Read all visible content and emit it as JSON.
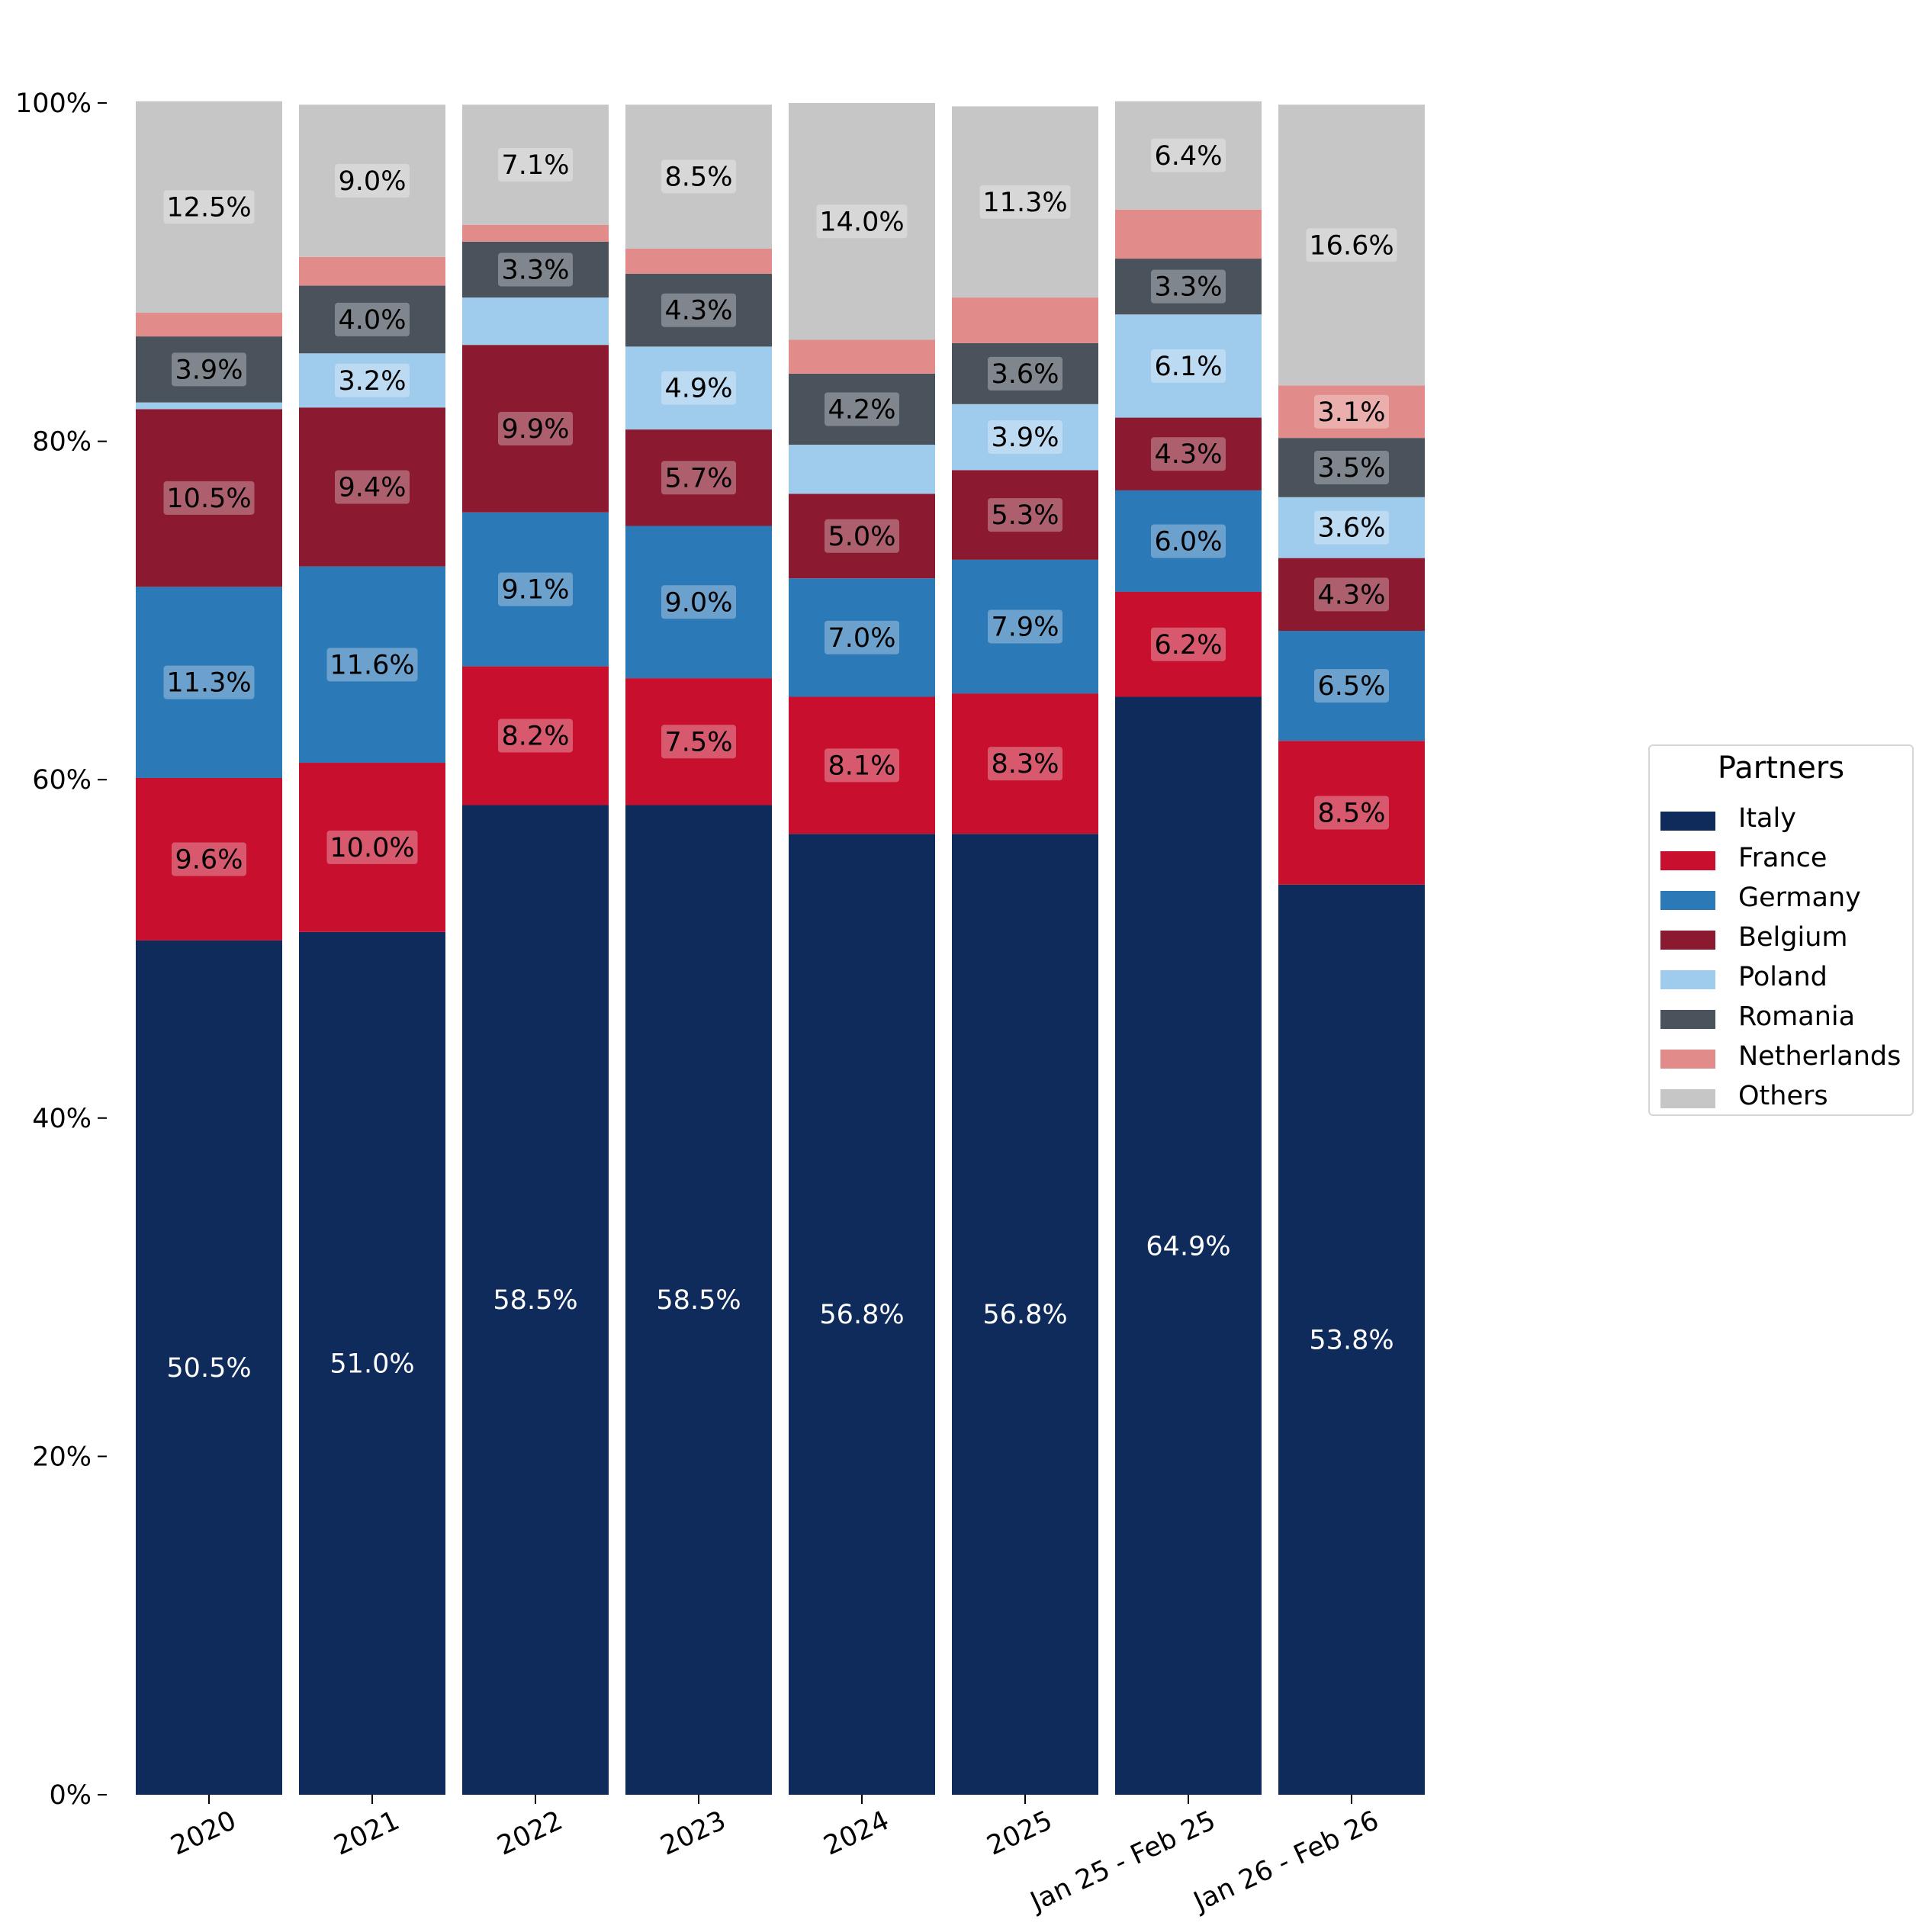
{
  "chart_data": {
    "type": "bar",
    "stacked": true,
    "orientation": "vertical",
    "categories": [
      "2020",
      "2021",
      "2022",
      "2023",
      "2024",
      "2025",
      "Jan 25 - Feb 25",
      "Jan 26 - Feb 26"
    ],
    "ylim": [
      0,
      100
    ],
    "y_ticks": [
      "0%",
      "20%",
      "40%",
      "60%",
      "80%",
      "100%"
    ],
    "grid": false,
    "legend": {
      "title": "Partners",
      "placement": "right"
    },
    "series": [
      {
        "name": "Italy",
        "color": "#0e2b5c",
        "values": [
          50.5,
          51.0,
          58.5,
          58.5,
          56.8,
          56.8,
          64.9,
          53.8
        ]
      },
      {
        "name": "France",
        "color": "#c8102e",
        "values": [
          9.6,
          10.0,
          8.2,
          7.5,
          8.1,
          8.3,
          6.2,
          8.5
        ]
      },
      {
        "name": "Germany",
        "color": "#2b79b6",
        "values": [
          11.3,
          11.6,
          9.1,
          9.0,
          7.0,
          7.9,
          6.0,
          6.5
        ]
      },
      {
        "name": "Belgium",
        "color": "#8b1a30",
        "values": [
          10.5,
          9.4,
          9.9,
          5.7,
          5.0,
          5.3,
          4.3,
          4.3
        ]
      },
      {
        "name": "Poland",
        "color": "#9fcbec",
        "values": [
          0.4,
          3.2,
          2.8,
          4.9,
          2.9,
          3.9,
          6.1,
          3.6
        ]
      },
      {
        "name": "Romania",
        "color": "#4a525c",
        "values": [
          3.9,
          4.0,
          3.3,
          4.3,
          4.2,
          3.6,
          3.3,
          3.5
        ]
      },
      {
        "name": "Netherlands",
        "color": "#e18c8a",
        "values": [
          1.4,
          1.7,
          1.0,
          1.5,
          2.0,
          2.7,
          2.9,
          3.1
        ]
      },
      {
        "name": "Others",
        "color": "#c6c6c6",
        "values": [
          12.5,
          9.0,
          7.1,
          8.5,
          14.0,
          11.3,
          6.4,
          16.6
        ]
      }
    ],
    "data_labels": [
      [
        "50.5%",
        "9.6%",
        "11.3%",
        "10.5%",
        "",
        "3.9%",
        "",
        "12.5%"
      ],
      [
        "51.0%",
        "10.0%",
        "11.6%",
        "9.4%",
        "3.2%",
        "4.0%",
        "",
        "9.0%"
      ],
      [
        "58.5%",
        "8.2%",
        "9.1%",
        "9.9%",
        "",
        "3.3%",
        "",
        "7.1%"
      ],
      [
        "58.5%",
        "7.5%",
        "9.0%",
        "5.7%",
        "4.9%",
        "4.3%",
        "",
        "8.5%"
      ],
      [
        "56.8%",
        "8.1%",
        "7.0%",
        "5.0%",
        "",
        "4.2%",
        "",
        "14.0%"
      ],
      [
        "56.8%",
        "8.3%",
        "7.9%",
        "5.3%",
        "3.9%",
        "3.6%",
        "",
        "11.3%"
      ],
      [
        "64.9%",
        "6.2%",
        "6.0%",
        "4.3%",
        "6.1%",
        "3.3%",
        "",
        "6.4%"
      ],
      [
        "53.8%",
        "8.5%",
        "6.5%",
        "4.3%",
        "3.6%",
        "3.5%",
        "3.1%",
        "16.6%"
      ]
    ]
  }
}
